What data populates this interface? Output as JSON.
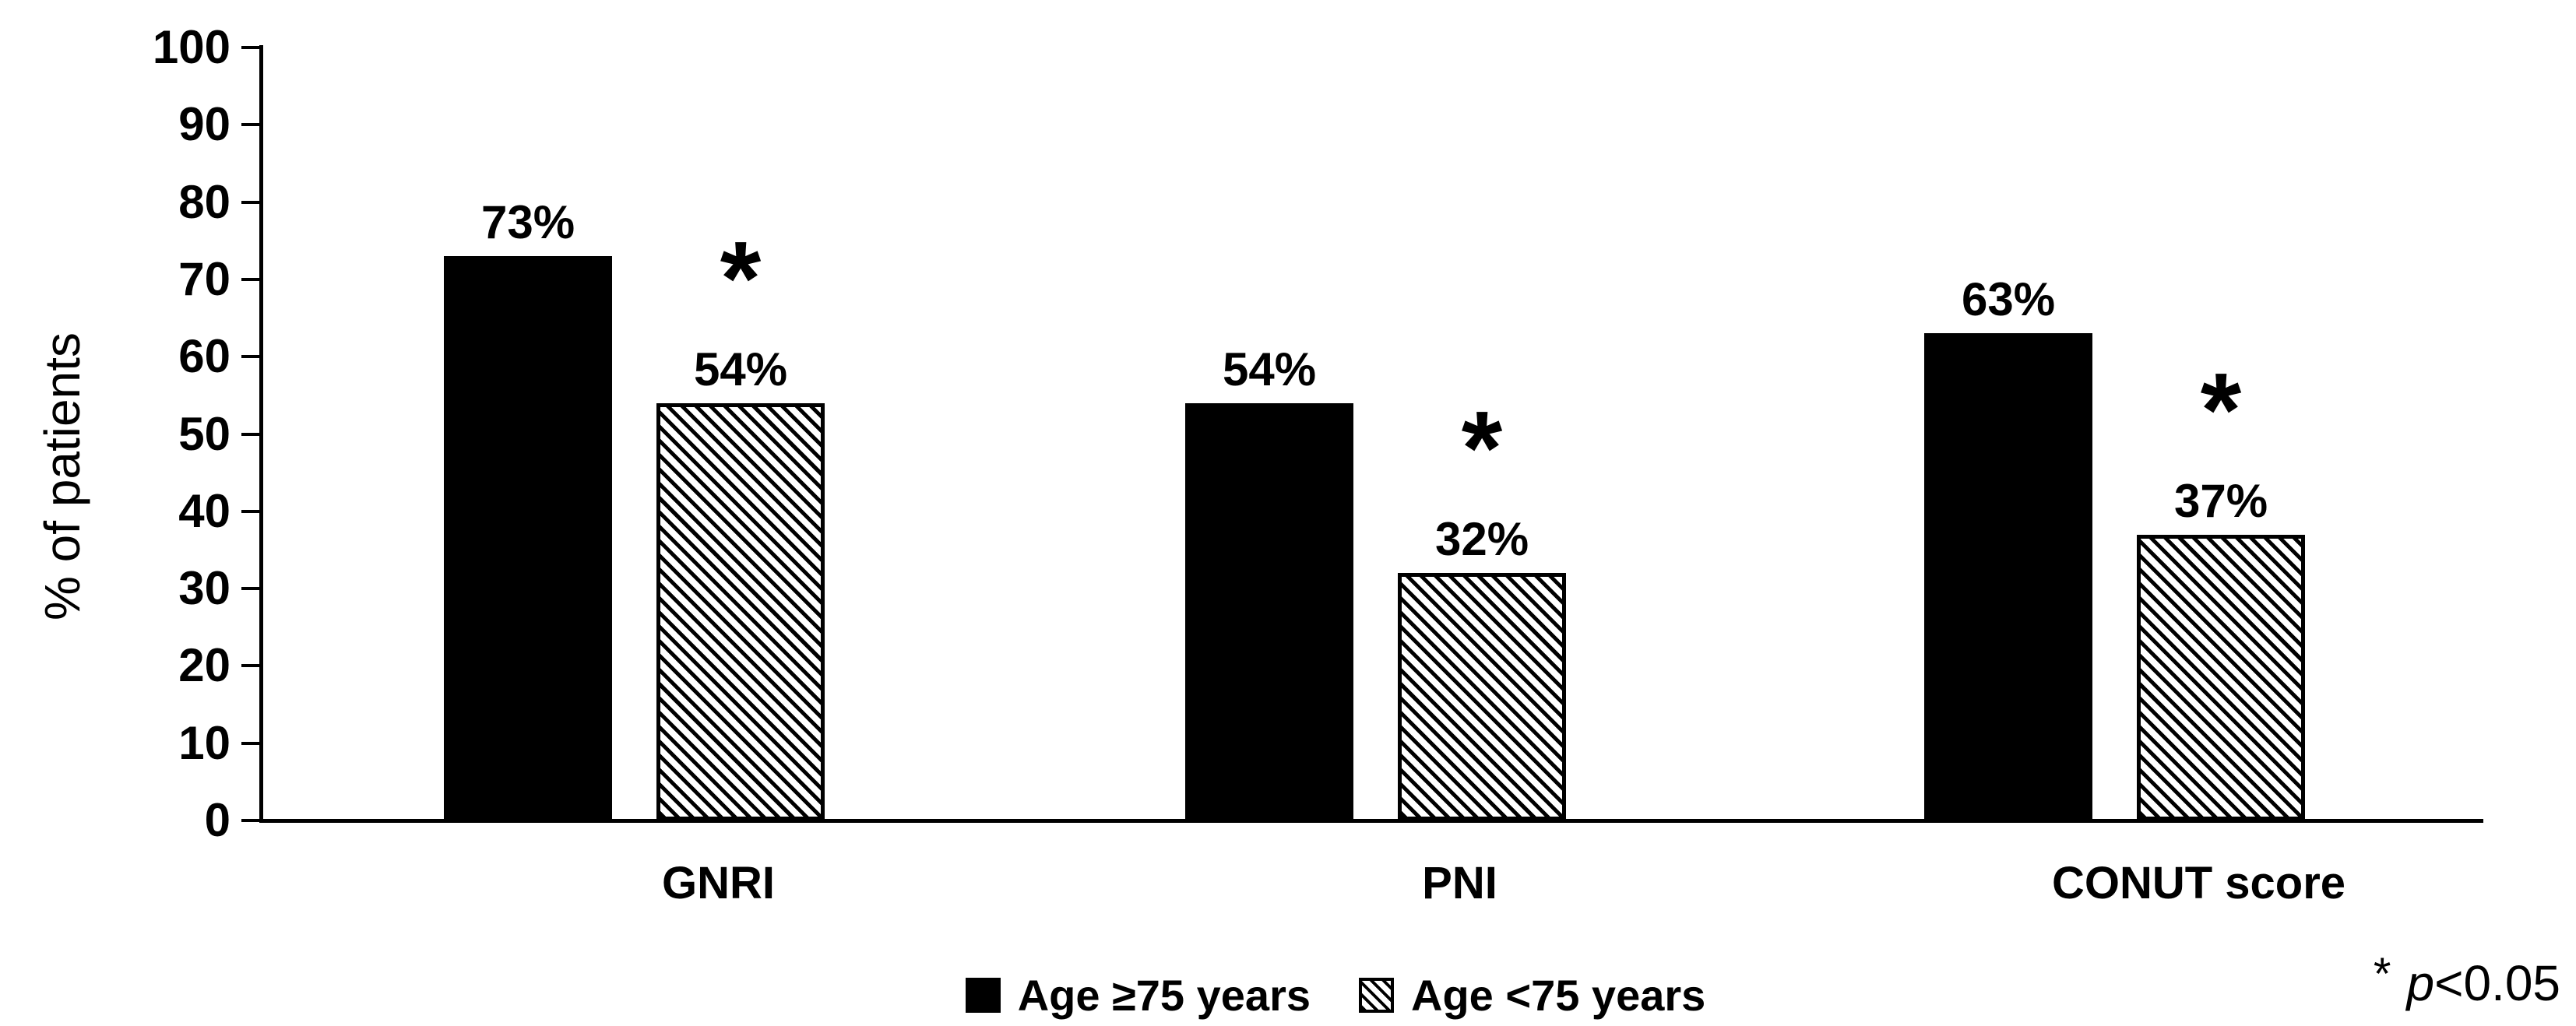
{
  "chart_data": {
    "type": "bar",
    "title": "",
    "ylabel": "% of patients",
    "ylim": [
      0,
      100
    ],
    "yticks": [
      0,
      10,
      20,
      30,
      40,
      50,
      60,
      70,
      80,
      90,
      100
    ],
    "grid": false,
    "legend_position": "bottom-center",
    "categories": [
      "GNRI",
      "PNI",
      "CONUT score"
    ],
    "series": [
      {
        "name": "Age ≥75 years",
        "style": "solid-black",
        "color": "#000000",
        "values": [
          73,
          54,
          63
        ],
        "data_labels": [
          "73%",
          "54%",
          "63%"
        ]
      },
      {
        "name": "Age <75 years",
        "style": "diagonal-hatch",
        "color": "#000000",
        "values": [
          54,
          32,
          37
        ],
        "data_labels": [
          "54%",
          "32%",
          "37%"
        ],
        "significant": [
          true,
          true,
          true
        ]
      }
    ],
    "significance_marker": "*",
    "annotation": {
      "marker": "*",
      "variable": "p",
      "comparison": "<0.05"
    },
    "colors": {
      "foreground": "#000000",
      "background": "#ffffff"
    }
  }
}
